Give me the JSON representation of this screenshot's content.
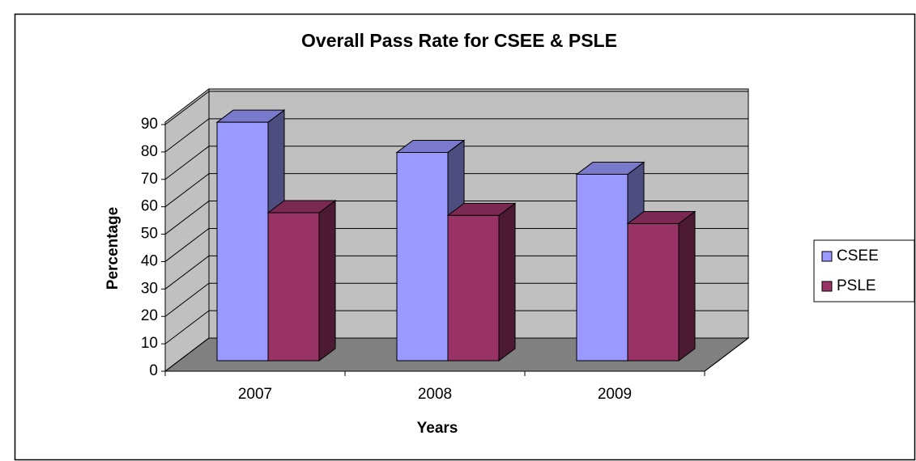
{
  "chart_data": {
    "type": "bar3d",
    "title": "Overall Pass Rate for CSEE & PSLE",
    "xlabel": "Years",
    "ylabel": "Percentage",
    "categories": [
      "2007",
      "2008",
      "2009"
    ],
    "series": [
      {
        "name": "CSEE",
        "color": "#9999ff",
        "values": [
          87,
          76,
          68
        ]
      },
      {
        "name": "PSLE",
        "color": "#993366",
        "values": [
          54,
          53,
          50
        ]
      }
    ],
    "ylim": [
      0,
      90
    ],
    "yticks": [
      0,
      10,
      20,
      30,
      40,
      50,
      60,
      70,
      80,
      90
    ],
    "grid": true,
    "legend": "right"
  }
}
